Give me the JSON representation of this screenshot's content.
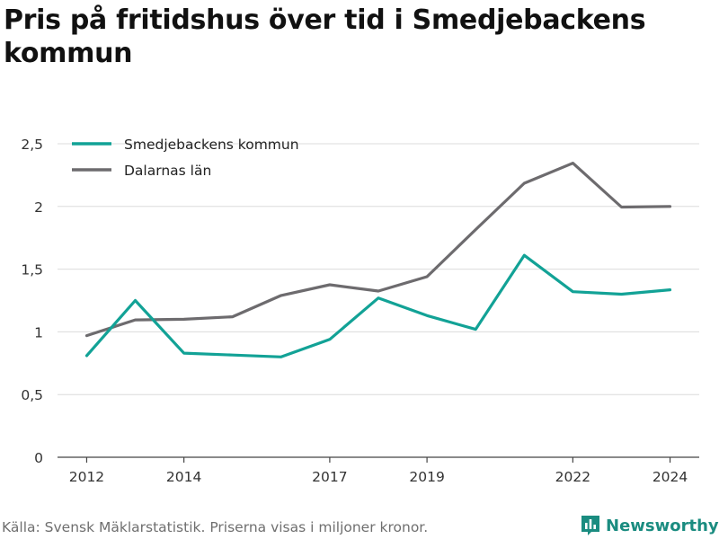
{
  "title": "Pris på fritidshus över tid i Smedjebackens kommun",
  "footer": "Källa: Svensk Mäklarstatistik. Priserna visas i miljoner kronor.",
  "brand": {
    "name": "Newsworthy",
    "icon": "bar-chart-icon",
    "color": "#1a8c80"
  },
  "chart_data": {
    "type": "line",
    "title": "Pris på fritidshus över tid i Smedjebackens kommun",
    "xlabel": "",
    "ylabel": "",
    "x": [
      2012,
      2013,
      2014,
      2015,
      2016,
      2017,
      2018,
      2019,
      2020,
      2021,
      2022,
      2023,
      2024
    ],
    "x_ticks": [
      2012,
      2014,
      2017,
      2019,
      2022,
      2024
    ],
    "y_ticks": [
      0,
      0.5,
      1,
      1.5,
      2,
      2.5
    ],
    "y_tick_labels": [
      "0",
      "0,5",
      "1",
      "1,5",
      "2",
      "2,5"
    ],
    "xlim": [
      2011.4,
      2024.6
    ],
    "ylim": [
      0,
      2.5
    ],
    "grid": true,
    "legend_position": "top-left",
    "series": [
      {
        "name": "Smedjebackens kommun",
        "color": "#12a296",
        "values": [
          0.81,
          1.25,
          0.83,
          0.815,
          0.8,
          0.94,
          1.27,
          1.13,
          1.02,
          1.61,
          1.32,
          1.3,
          1.335
        ]
      },
      {
        "name": "Dalarnas län",
        "color": "#6d6b6e",
        "values": [
          0.97,
          1.095,
          1.1,
          1.12,
          1.29,
          1.375,
          1.325,
          1.44,
          1.815,
          2.185,
          2.345,
          1.995,
          2.0
        ]
      }
    ]
  }
}
